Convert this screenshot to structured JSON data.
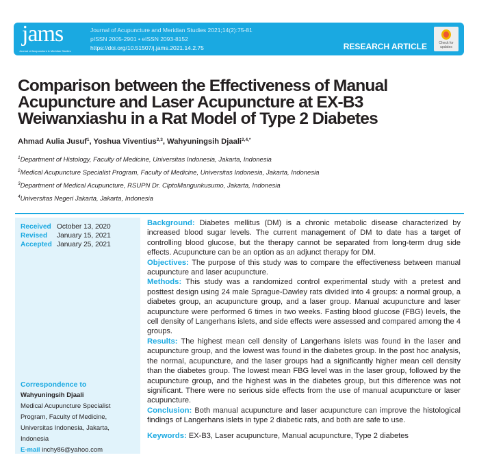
{
  "header": {
    "logo": "jams",
    "logo_sub": "Journal of Acupuncture & Meridian Studies",
    "citation": "Journal of Acupuncture and Meridian Studies 2021;14(2):75-81",
    "issn": "pISSN 2005-2901 • eISSN 2093-8152",
    "doi": "https://doi.org/10.51507/j.jams.2021.14.2.75",
    "article_type": "RESEARCH ARTICLE",
    "check_updates": "Check for updates"
  },
  "title": "Comparison between the Effectiveness of Manual Acupuncture and Laser Acupuncture at EX-B3 Weiwanxiashu in a Rat Model of Type 2 Diabetes",
  "authors": [
    {
      "name": "Ahmad Aulia Jusuf",
      "sup": "1"
    },
    {
      "name": "Yoshua Viventius",
      "sup": "2,3"
    },
    {
      "name": "Wahyuningsih Djaali",
      "sup": "2,4,*"
    }
  ],
  "affiliations": [
    {
      "n": "1",
      "text": "Department of Histology, Faculty of Medicine, Universitas Indonesia, Jakarta, Indonesia"
    },
    {
      "n": "2",
      "text": "Medical Acupuncture Specialist Program, Faculty of Medicine, Universitas Indonesia, Jakarta, Indonesia"
    },
    {
      "n": "3",
      "text": "Department of Medical Acupuncture, RSUPN Dr. CiptoMangunkusumo, Jakarta, Indonesia"
    },
    {
      "n": "4",
      "text": "Universitas Negeri Jakarta, Jakarta, Indonesia"
    }
  ],
  "dates": {
    "received_label": "Received",
    "received": "October 13, 2020",
    "revised_label": "Revised",
    "revised": "January 15, 2021",
    "accepted_label": "Accepted",
    "accepted": "January 25, 2021"
  },
  "correspondence": {
    "label": "Correspondence to",
    "name": "Wahyuningsih Djaali",
    "address": "Medical Acupuncture Specialist Program, Faculty of Medicine, Universitas Indonesia, Jakarta, Indonesia",
    "email_label": "E-mail",
    "email": "inchy86@yahoo.com"
  },
  "abstract": [
    {
      "label": "Background:",
      "text": " Diabetes mellitus (DM) is a chronic metabolic disease characterized by increased blood sugar levels. The current management of DM to date has a target of controlling blood glucose, but the therapy cannot be separated from long-term drug side effects. Acupuncture can be an option as an adjunct therapy for DM."
    },
    {
      "label": "Objectives:",
      "text": " The purpose of this study was to compare the effectiveness between manual acupuncture and laser acupuncture."
    },
    {
      "label": "Methods:",
      "text": " This study was a randomized control experimental study with a pretest and posttest design using 24 male Sprague-Dawley rats divided into 4 groups: a normal group, a diabetes group, an acupuncture group, and a laser group. Manual acupuncture and laser acupuncture were performed 6 times in two weeks. Fasting blood glucose (FBG) levels, the cell density of Langerhans islets, and side effects were assessed and compared among the 4 groups."
    },
    {
      "label": "Results:",
      "text": " The highest mean cell density of Langerhans islets was found in the laser and acupuncture group, and the lowest was found in the diabetes group. In the post hoc analysis, the normal, acupuncture, and the laser groups had a significantly higher mean cell density than the diabetes group. The lowest mean FBG level was in the laser group, followed by the acupuncture group, and the highest was in the diabetes group, but this difference was not significant. There were no serious side effects from the use of manual acupuncture or laser acupuncture."
    },
    {
      "label": "Conclusion:",
      "text": " Both manual acupuncture and laser acupuncture can improve the histological findings of Langerhans islets in type 2 diabetic rats, and both are safe to use."
    }
  ],
  "keywords": {
    "label": "Keywords:",
    "text": " EX-B3, Laser acupuncture, Manual acupuncture, Type 2 diabetes"
  },
  "colors": {
    "accent": "#1aa9e1",
    "panel": "#e1f3fb"
  }
}
